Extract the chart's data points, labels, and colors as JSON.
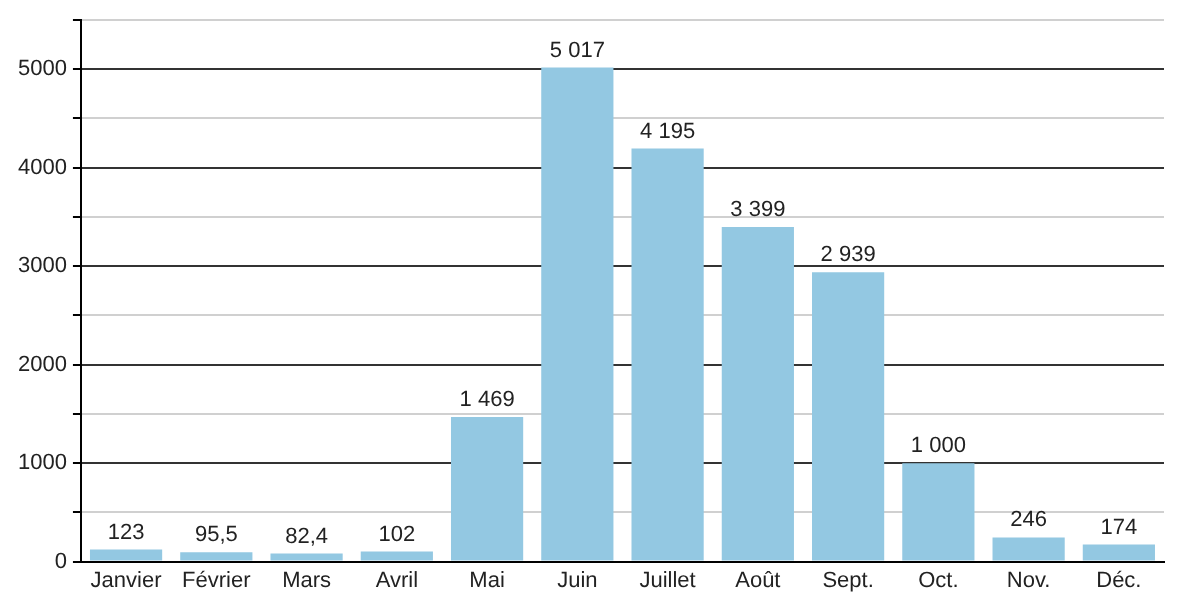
{
  "chart_data": {
    "type": "bar",
    "categories": [
      "Janvier",
      "Février",
      "Mars",
      "Avril",
      "Mai",
      "Juin",
      "Juillet",
      "Août",
      "Sept.",
      "Oct.",
      "Nov.",
      "Déc."
    ],
    "values": [
      123,
      95.5,
      82.4,
      102,
      1469,
      5017,
      4195,
      3399,
      2939,
      1000,
      246,
      174
    ],
    "value_labels": [
      "123",
      "95,5",
      "82,4",
      "102",
      "1 469",
      "5 017",
      "4 195",
      "3 399",
      "2 939",
      "1 000",
      "246",
      "174"
    ],
    "color": "#93c8e2",
    "ylim": [
      0,
      5500
    ],
    "yticks": [
      0,
      {
        "value": 500,
        "label": null
      },
      1000,
      {
        "value": 1500,
        "label": null
      },
      2000,
      {
        "value": 2500,
        "label": null
      },
      3000,
      {
        "value": 3500,
        "label": null
      },
      4000,
      {
        "value": 4500,
        "label": null
      },
      5000,
      {
        "value": 5500,
        "label": null
      }
    ],
    "grid": "y",
    "legend": false
  }
}
